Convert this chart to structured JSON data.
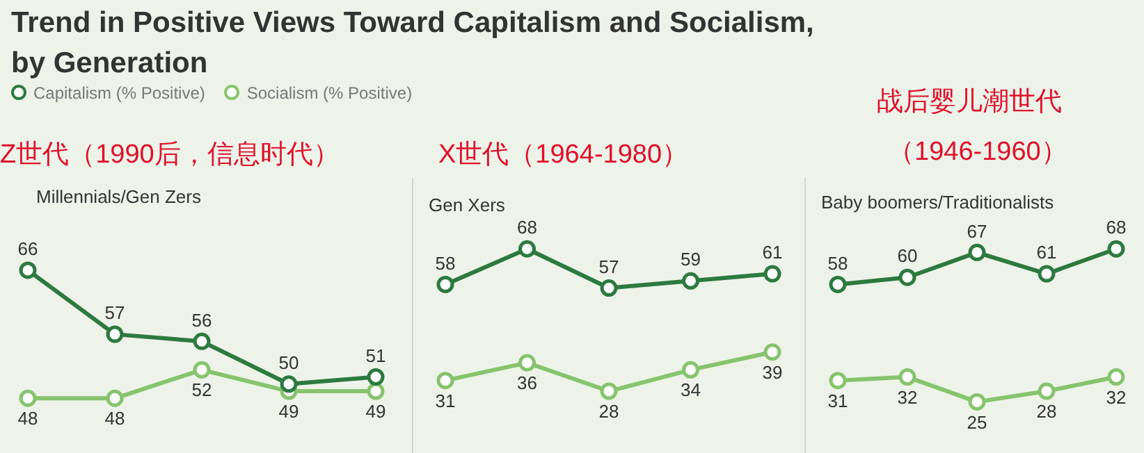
{
  "chart_data": [
    {
      "type": "line",
      "title": "Trend in Positive Views Toward Capitalism and Socialism, by Generation",
      "subtitle": "Millennials/Gen Zers",
      "annotations": [
        "Z世代（1990后，信息时代）"
      ],
      "categories": [
        null,
        null,
        null,
        null,
        null
      ],
      "legend": "top",
      "marker": "circle",
      "data_labels": true,
      "series": [
        {
          "name": "Capitalism (% Positive)",
          "color": "#2c7a3f",
          "values": [
            66,
            57,
            56,
            50,
            51
          ]
        },
        {
          "name": "Socialism (% Positive)",
          "color": "#86c46e",
          "values": [
            48,
            48,
            52,
            49,
            49
          ]
        }
      ]
    },
    {
      "type": "line",
      "subtitle": "Gen Xers",
      "annotations": [
        "X世代（1964-1980）"
      ],
      "categories": [
        null,
        null,
        null,
        null,
        null
      ],
      "marker": "circle",
      "data_labels": true,
      "series": [
        {
          "color": "#2c7a3f",
          "values": [
            58,
            68,
            57,
            59,
            61
          ]
        },
        {
          "color": "#86c46e",
          "values": [
            31,
            36,
            28,
            34,
            39
          ]
        }
      ]
    },
    {
      "type": "line",
      "subtitle": "Baby boomers/Traditionalists",
      "annotations": [
        "战后婴儿潮世代",
        "（1946-1960）"
      ],
      "categories": [
        null,
        null,
        null,
        null,
        null
      ],
      "marker": "circle",
      "data_labels": true,
      "series": [
        {
          "color": "#2c7a3f",
          "values": [
            58,
            60,
            67,
            61,
            68
          ]
        },
        {
          "color": "#86c46e",
          "values": [
            31,
            32,
            25,
            28,
            32
          ]
        }
      ]
    }
  ]
}
